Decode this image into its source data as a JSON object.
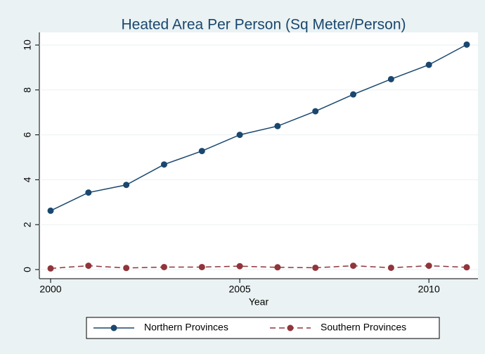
{
  "chart_data": {
    "type": "line",
    "title": "Heated Area Per Person (Sq Meter/Person)",
    "xlabel": "Year",
    "x": [
      2000,
      2001,
      2002,
      2003,
      2004,
      2005,
      2006,
      2007,
      2008,
      2009,
      2010,
      2011
    ],
    "series": [
      {
        "name": "Northern Provinces",
        "color": "#1a476f",
        "dash": false,
        "values": [
          2.62,
          3.43,
          3.77,
          4.68,
          5.28,
          6.0,
          6.39,
          7.05,
          7.8,
          8.48,
          9.12,
          10.02
        ]
      },
      {
        "name": "Southern Provinces",
        "color": "#90353b",
        "dash": true,
        "values": [
          0.05,
          0.17,
          0.07,
          0.11,
          0.11,
          0.15,
          0.1,
          0.08,
          0.17,
          0.08,
          0.17,
          0.1
        ]
      }
    ],
    "xlim": [
      2000,
      2011
    ],
    "xticks": [
      2000,
      2005,
      2010
    ],
    "ylim": [
      0,
      10
    ],
    "yticks": [
      0,
      2,
      4,
      6,
      8,
      10
    ],
    "grid": true,
    "legend": "bottom"
  }
}
